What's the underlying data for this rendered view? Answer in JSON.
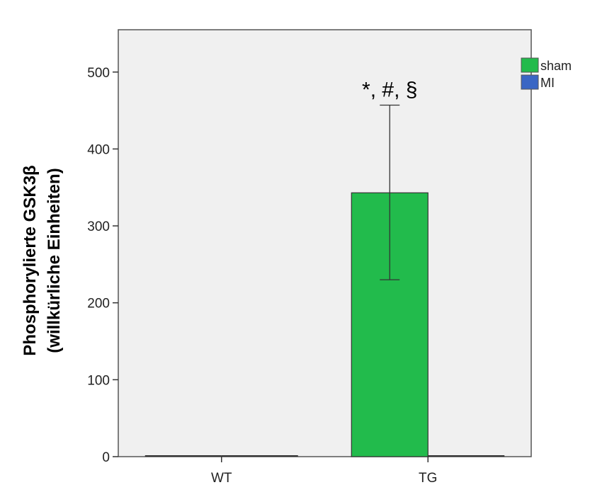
{
  "chart_data": {
    "type": "bar",
    "categories": [
      "WT",
      "TG"
    ],
    "series": [
      {
        "name": "sham",
        "color": "#22bb4c",
        "values": [
          0,
          343
        ],
        "error_low": [
          0,
          230
        ],
        "error_high": [
          0,
          457
        ]
      },
      {
        "name": "MI",
        "color": "#3a66c4",
        "values": [
          0,
          0
        ],
        "error_low": [
          0,
          0
        ],
        "error_high": [
          0,
          0
        ]
      }
    ],
    "ylabel_line1": "Phosphorylierte GSK3β",
    "ylabel_line2": "(willkürliche Einheiten)",
    "ylim": [
      0,
      555
    ],
    "yticks": [
      0,
      100,
      200,
      300,
      400,
      500
    ],
    "annotations": [
      {
        "category": "TG",
        "text": "*, #, §"
      }
    ],
    "legend_position": "top-right",
    "grid": false,
    "plot_background": "#f0f0f0"
  }
}
